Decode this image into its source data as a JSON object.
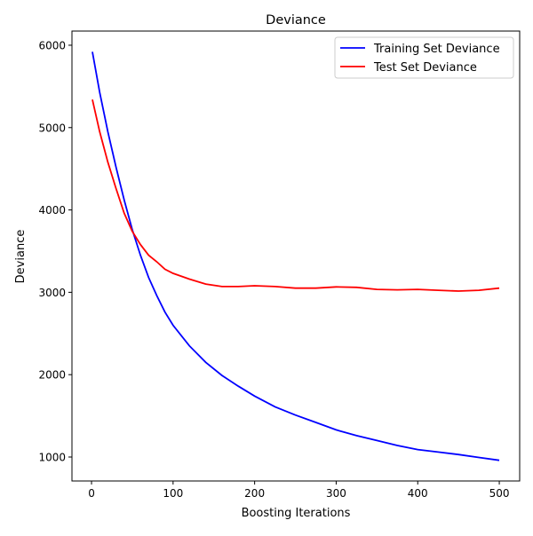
{
  "chart_data": {
    "type": "line",
    "title": "Deviance",
    "xlabel": "Boosting Iterations",
    "ylabel": "Deviance",
    "xlim": [
      -24,
      525
    ],
    "ylim": [
      709,
      6172
    ],
    "xticks": [
      0,
      100,
      200,
      300,
      400,
      500
    ],
    "yticks": [
      1000,
      2000,
      3000,
      4000,
      5000,
      6000
    ],
    "grid": false,
    "legend": "top-right",
    "x": [
      1,
      10,
      20,
      30,
      40,
      50,
      60,
      70,
      80,
      90,
      100,
      120,
      140,
      160,
      180,
      200,
      225,
      250,
      275,
      300,
      325,
      350,
      375,
      400,
      425,
      450,
      475,
      500
    ],
    "series": [
      {
        "name": "Training Set Deviance",
        "color": "#0000ff",
        "values": [
          5920,
          5430,
          4950,
          4520,
          4120,
          3760,
          3450,
          3180,
          2960,
          2760,
          2600,
          2350,
          2150,
          1990,
          1860,
          1740,
          1610,
          1510,
          1420,
          1330,
          1260,
          1200,
          1140,
          1090,
          1060,
          1030,
          995,
          960
        ]
      },
      {
        "name": "Test Set Deviance",
        "color": "#ff0000",
        "values": [
          5340,
          4950,
          4580,
          4260,
          3960,
          3740,
          3580,
          3450,
          3370,
          3280,
          3230,
          3160,
          3100,
          3070,
          3070,
          3080,
          3070,
          3050,
          3050,
          3065,
          3060,
          3035,
          3030,
          3035,
          3025,
          3015,
          3025,
          3050
        ]
      }
    ]
  }
}
